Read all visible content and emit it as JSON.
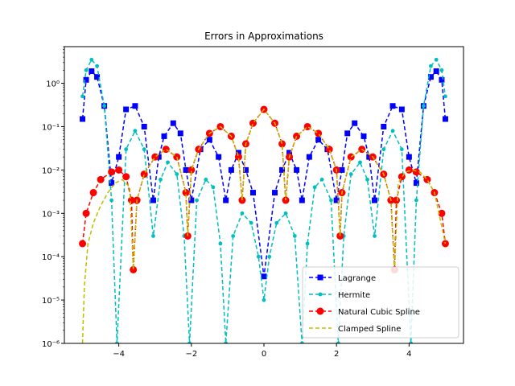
{
  "chart_data": {
    "type": "line",
    "title": "Errors in Approximations",
    "xlabel": "",
    "ylabel": "",
    "xlim": [
      -5.5,
      5.5
    ],
    "ylim": [
      1e-06,
      7
    ],
    "yscale": "log",
    "grid": false,
    "legend_position": "lower-right",
    "x_ticks": [
      -4,
      -2,
      0,
      2,
      4
    ],
    "x_tick_labels": [
      "−4",
      "−2",
      "0",
      "2",
      "4"
    ],
    "y_ticks": [
      1e-06,
      1e-05,
      0.0001,
      0.001,
      0.01,
      0.1,
      1
    ],
    "y_tick_labels": [
      "10⁻⁶",
      "10⁻⁵",
      "10⁻⁴",
      "10⁻³",
      "10⁻²",
      "10⁻¹",
      "10⁰"
    ],
    "series": [
      {
        "name": "Lagrange",
        "color": "#0000ff",
        "marker": "square",
        "linestyle": "dashed",
        "x": [
          -5.0,
          -4.9,
          -4.75,
          -4.6,
          -4.4,
          -4.2,
          -4.0,
          -3.8,
          -3.55,
          -3.3,
          -3.05,
          -2.9,
          -2.75,
          -2.5,
          -2.3,
          -2.15,
          -2.0,
          -1.75,
          -1.5,
          -1.25,
          -1.05,
          -0.9,
          -0.7,
          -0.5,
          -0.3,
          0.0,
          0.3,
          0.5,
          0.7,
          0.9,
          1.05,
          1.25,
          1.5,
          1.75,
          2.0,
          2.15,
          2.3,
          2.5,
          2.75,
          2.9,
          3.05,
          3.3,
          3.55,
          3.8,
          4.0,
          4.2,
          4.4,
          4.6,
          4.75,
          4.9,
          5.0
        ],
        "y": [
          0.15,
          1.2,
          1.9,
          1.4,
          0.3,
          0.005,
          0.02,
          0.25,
          0.3,
          0.1,
          0.002,
          0.02,
          0.06,
          0.12,
          0.07,
          0.01,
          0.002,
          0.03,
          0.05,
          0.02,
          0.002,
          0.01,
          0.025,
          0.01,
          0.003,
          3.5e-05,
          0.003,
          0.01,
          0.025,
          0.01,
          0.002,
          0.02,
          0.05,
          0.03,
          0.002,
          0.01,
          0.07,
          0.12,
          0.06,
          0.02,
          0.002,
          0.1,
          0.3,
          0.25,
          0.02,
          0.005,
          0.3,
          1.4,
          1.9,
          1.2,
          0.15
        ]
      },
      {
        "name": "Hermite",
        "color": "#00bfbf",
        "marker": "circle-small",
        "linestyle": "dashed",
        "x": [
          -5.0,
          -4.9,
          -4.75,
          -4.6,
          -4.4,
          -4.2,
          -4.05,
          -3.8,
          -3.55,
          -3.3,
          -3.05,
          -2.85,
          -2.65,
          -2.4,
          -2.2,
          -2.05,
          -1.85,
          -1.6,
          -1.4,
          -1.2,
          -1.05,
          -0.85,
          -0.6,
          -0.35,
          -0.15,
          0.0,
          0.15,
          0.35,
          0.6,
          0.85,
          1.05,
          1.2,
          1.4,
          1.6,
          1.85,
          2.05,
          2.2,
          2.4,
          2.65,
          2.85,
          3.05,
          3.3,
          3.55,
          3.8,
          4.05,
          4.2,
          4.4,
          4.6,
          4.75,
          4.9,
          5.0
        ],
        "y": [
          0.5,
          2.0,
          3.5,
          2.5,
          0.3,
          0.002,
          1e-06,
          0.03,
          0.08,
          0.03,
          0.0003,
          0.006,
          0.015,
          0.008,
          0.0003,
          1e-06,
          0.002,
          0.006,
          0.004,
          0.0002,
          1e-06,
          0.0003,
          0.001,
          0.0006,
          0.0001,
          1e-05,
          0.0001,
          0.0006,
          0.001,
          0.0003,
          1e-06,
          0.0002,
          0.004,
          0.006,
          0.002,
          1e-06,
          0.0003,
          0.008,
          0.015,
          0.006,
          0.0003,
          0.03,
          0.08,
          0.03,
          1e-06,
          0.002,
          0.3,
          2.5,
          3.5,
          2.0,
          0.5
        ]
      },
      {
        "name": "Natural Cubic Spline",
        "color": "#ff0000",
        "marker": "circle",
        "linestyle": "dashed",
        "x": [
          -5.0,
          -4.9,
          -4.7,
          -4.5,
          -4.2,
          -4.0,
          -3.8,
          -3.65,
          -3.6,
          -3.5,
          -3.3,
          -3.0,
          -2.7,
          -2.4,
          -2.15,
          -2.1,
          -2.0,
          -1.8,
          -1.5,
          -1.2,
          -0.9,
          -0.7,
          -0.6,
          -0.5,
          -0.3,
          0.0,
          0.3,
          0.5,
          0.6,
          0.7,
          0.9,
          1.2,
          1.5,
          1.8,
          2.0,
          2.1,
          2.15,
          2.4,
          2.7,
          3.0,
          3.3,
          3.5,
          3.6,
          3.65,
          3.8,
          4.0,
          4.2,
          4.5,
          4.7,
          4.9,
          5.0
        ],
        "y": [
          0.0002,
          0.001,
          0.003,
          0.006,
          0.009,
          0.01,
          0.007,
          0.002,
          5e-05,
          0.002,
          0.008,
          0.02,
          0.03,
          0.02,
          0.003,
          0.0003,
          0.01,
          0.03,
          0.07,
          0.1,
          0.06,
          0.02,
          0.002,
          0.04,
          0.12,
          0.25,
          0.12,
          0.04,
          0.002,
          0.02,
          0.06,
          0.1,
          0.07,
          0.03,
          0.01,
          0.0003,
          0.003,
          0.02,
          0.03,
          0.02,
          0.008,
          0.002,
          5e-05,
          0.002,
          0.007,
          0.01,
          0.009,
          0.006,
          0.003,
          0.001,
          0.0002
        ]
      },
      {
        "name": "Clamped Spline",
        "color": "#bfbf00",
        "marker": "none",
        "linestyle": "dashed",
        "x": [
          -5.0,
          -4.95,
          -4.85,
          -4.7,
          -4.5,
          -4.3,
          -4.1,
          -3.9,
          -3.7,
          -3.6,
          -3.5,
          -3.3,
          -3.0,
          -2.7,
          -2.4,
          -2.15,
          -2.1,
          -2.0,
          -1.8,
          -1.5,
          -1.2,
          -0.9,
          -0.7,
          -0.6,
          -0.5,
          -0.3,
          0.0,
          0.3,
          0.5,
          0.6,
          0.7,
          0.9,
          1.2,
          1.5,
          1.8,
          2.0,
          2.1,
          2.15,
          2.4,
          2.7,
          3.0,
          3.3,
          3.5,
          3.6,
          3.7,
          3.9,
          4.1,
          4.3,
          4.5,
          4.7,
          5.0
        ],
        "y": [
          1e-06,
          2e-05,
          0.0002,
          0.0006,
          0.0015,
          0.003,
          0.005,
          0.006,
          0.004,
          5e-05,
          0.002,
          0.008,
          0.02,
          0.03,
          0.02,
          0.003,
          0.0003,
          0.01,
          0.03,
          0.07,
          0.1,
          0.06,
          0.02,
          0.002,
          0.04,
          0.12,
          0.25,
          0.12,
          0.04,
          0.002,
          0.02,
          0.06,
          0.1,
          0.07,
          0.03,
          0.01,
          0.0003,
          0.003,
          0.02,
          0.03,
          0.02,
          0.008,
          0.002,
          5e-05,
          0.005,
          0.009,
          0.01,
          0.009,
          0.006,
          0.003,
          0.0002
        ]
      }
    ]
  }
}
